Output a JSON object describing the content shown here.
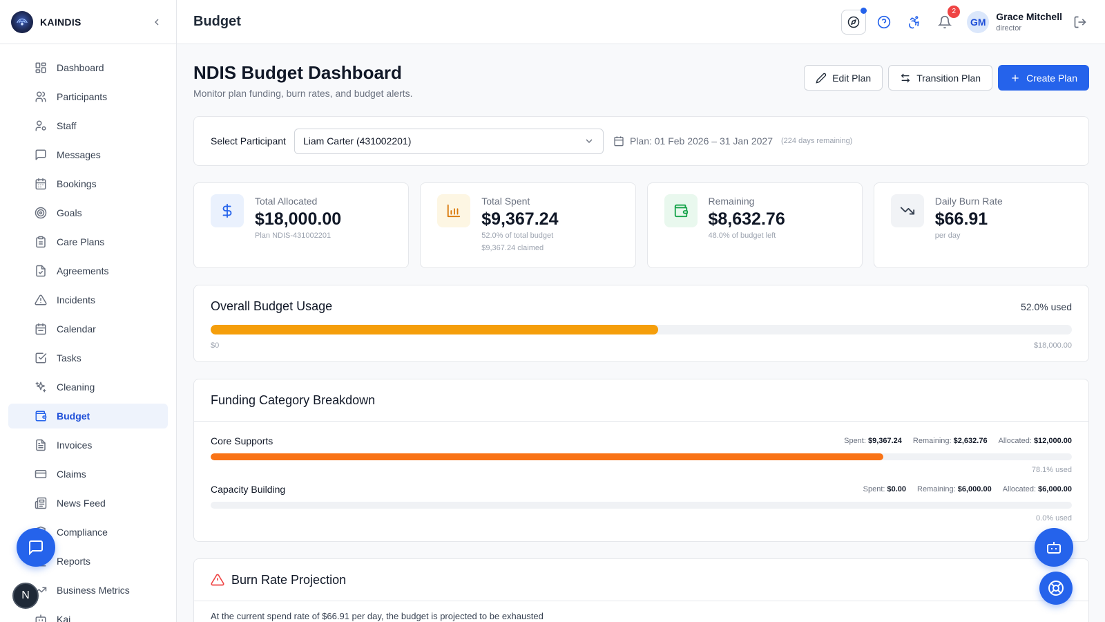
{
  "brand": {
    "name": "KAINDIS"
  },
  "sidebar": {
    "items": [
      {
        "label": "Dashboard",
        "icon": "layout-grid-icon"
      },
      {
        "label": "Participants",
        "icon": "users-icon"
      },
      {
        "label": "Staff",
        "icon": "user-cog-icon"
      },
      {
        "label": "Messages",
        "icon": "message-square-icon"
      },
      {
        "label": "Bookings",
        "icon": "calendar-days-icon"
      },
      {
        "label": "Goals",
        "icon": "target-icon"
      },
      {
        "label": "Care Plans",
        "icon": "clipboard-icon"
      },
      {
        "label": "Agreements",
        "icon": "file-check-icon"
      },
      {
        "label": "Incidents",
        "icon": "alert-triangle-icon"
      },
      {
        "label": "Calendar",
        "icon": "calendar-icon"
      },
      {
        "label": "Tasks",
        "icon": "check-square-icon"
      },
      {
        "label": "Cleaning",
        "icon": "sparkles-icon"
      },
      {
        "label": "Budget",
        "icon": "wallet-icon",
        "active": true
      },
      {
        "label": "Invoices",
        "icon": "file-text-icon"
      },
      {
        "label": "Claims",
        "icon": "credit-card-icon"
      },
      {
        "label": "News Feed",
        "icon": "newspaper-icon"
      },
      {
        "label": "Compliance",
        "icon": "shield-icon"
      },
      {
        "label": "Reports",
        "icon": "bar-chart-icon"
      },
      {
        "label": "Business Metrics",
        "icon": "trending-up-icon"
      },
      {
        "label": "Kai",
        "icon": "bot-icon"
      }
    ]
  },
  "header": {
    "title": "Budget",
    "notification_count": "2",
    "user": {
      "initials": "GM",
      "name": "Grace Mitchell",
      "role": "director"
    }
  },
  "page": {
    "title": "NDIS Budget Dashboard",
    "subtitle": "Monitor plan funding, burn rates, and budget alerts.",
    "buttons": {
      "edit": "Edit Plan",
      "transition": "Transition Plan",
      "create": "Create Plan"
    }
  },
  "selector": {
    "label": "Select Participant",
    "value": "Liam Carter (431002201)",
    "plan_range": "Plan: 01 Feb 2026 – 31 Jan 2027",
    "days_remaining": "(224 days remaining)"
  },
  "stats": [
    {
      "label": "Total Allocated",
      "value": "$18,000.00",
      "sub1": "Plan NDIS-431002201",
      "sub2": "",
      "icon": "dollar-icon",
      "color": "#2563eb",
      "bg": "#eaf1fd"
    },
    {
      "label": "Total Spent",
      "value": "$9,367.24",
      "sub1": "52.0% of total budget",
      "sub2": "$9,367.24 claimed",
      "icon": "bar-chart-icon",
      "color": "#d97706",
      "bg": "#fdf6e3"
    },
    {
      "label": "Remaining",
      "value": "$8,632.76",
      "sub1": "48.0% of budget left",
      "sub2": "",
      "icon": "wallet-icon",
      "color": "#16a34a",
      "bg": "#e9f8ee"
    },
    {
      "label": "Daily Burn Rate",
      "value": "$66.91",
      "sub1": "per day",
      "sub2": "",
      "icon": "trending-down-icon",
      "color": "#374151",
      "bg": "#f1f3f6"
    }
  ],
  "usage": {
    "title": "Overall Budget Usage",
    "pct_label": "52.0% used",
    "fraction": 0.52,
    "color": "#f59e0b",
    "min_label": "$0",
    "max_label": "$18,000.00"
  },
  "funding": {
    "title": "Funding Category Breakdown",
    "spent_label": "Spent:",
    "remaining_label": "Remaining:",
    "allocated_label": "Allocated:",
    "rows": [
      {
        "name": "Core Supports",
        "spent": "$9,367.24",
        "remaining": "$2,632.76",
        "allocated": "$12,000.00",
        "pct_label": "78.1% used",
        "fraction": 0.781,
        "color": "#f97316"
      },
      {
        "name": "Capacity Building",
        "spent": "$0.00",
        "remaining": "$6,000.00",
        "allocated": "$6,000.00",
        "pct_label": "0.0% used",
        "fraction": 0.0,
        "color": "#f97316"
      }
    ]
  },
  "burn": {
    "title": "Burn Rate Projection",
    "text": "At the current spend rate of $66.91 per day, the budget is projected to be exhausted"
  },
  "colors": {
    "primary": "#2563eb",
    "warning": "#ef4444"
  }
}
